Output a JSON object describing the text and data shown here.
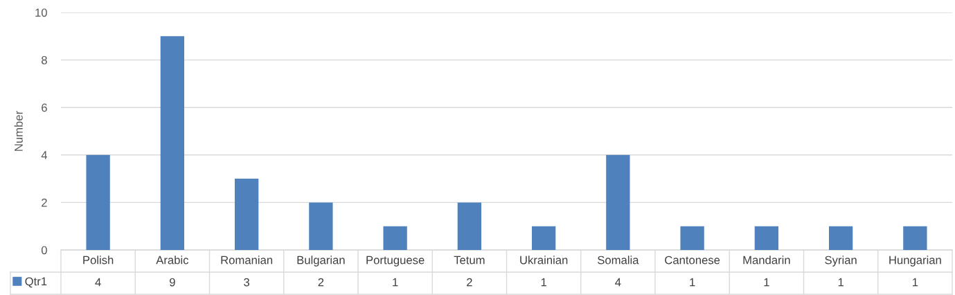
{
  "chart_data": {
    "type": "bar",
    "ylabel": "Number",
    "categories": [
      "Polish",
      "Arabic",
      "Romanian",
      "Bulgarian",
      "Portuguese",
      "Tetum",
      "Ukrainian",
      "Somalia",
      "Cantonese",
      "Mandarin",
      "Syrian",
      "Hungarian"
    ],
    "series": [
      {
        "name": "Qtr1",
        "color": "#4f81bd",
        "values": [
          4,
          9,
          3,
          2,
          1,
          2,
          1,
          4,
          1,
          1,
          1,
          1
        ]
      }
    ],
    "ylim": [
      0,
      10
    ],
    "yticks": [
      0,
      2,
      4,
      6,
      8,
      10
    ],
    "grid": "y",
    "data_labels": true,
    "legend": "bottom left"
  }
}
